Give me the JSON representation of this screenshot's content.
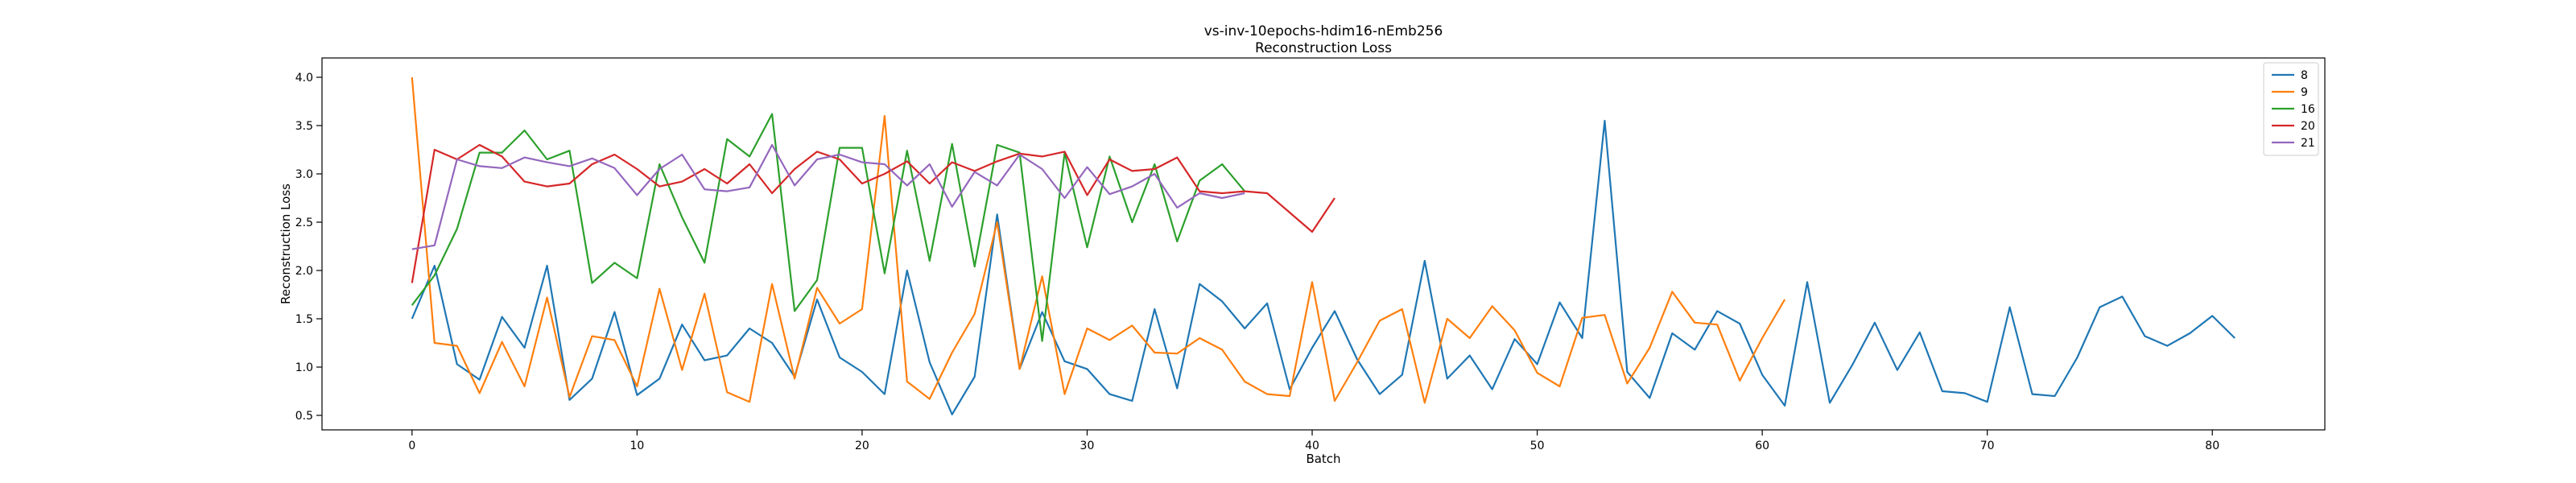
{
  "chart_data": {
    "type": "line",
    "title": "vs-inv-10epochs-hdim16-nEmb256",
    "subtitle": "Reconstruction Loss",
    "xlabel": "Batch",
    "ylabel": "Reconstruction Loss",
    "xlim": [
      -4,
      85
    ],
    "ylim": [
      0.35,
      4.2
    ],
    "xticks": [
      0,
      10,
      20,
      30,
      40,
      50,
      60,
      70,
      80
    ],
    "yticks": [
      0.5,
      1.0,
      1.5,
      2.0,
      2.5,
      3.0,
      3.5,
      4.0
    ],
    "xtick_labels": [
      "0",
      "10",
      "20",
      "30",
      "40",
      "50",
      "60",
      "70",
      "80"
    ],
    "ytick_labels": [
      "0.5",
      "1.0",
      "1.5",
      "2.0",
      "2.5",
      "3.0",
      "3.5",
      "4.0"
    ],
    "grid": false,
    "legend_position": "top-right",
    "series": [
      {
        "name": "8",
        "color": "#1f77b4",
        "values": [
          1.5,
          2.05,
          1.03,
          0.87,
          1.52,
          1.2,
          2.05,
          0.66,
          0.88,
          1.57,
          0.71,
          0.88,
          1.44,
          1.07,
          1.12,
          1.4,
          1.25,
          0.9,
          1.7,
          1.1,
          0.95,
          0.72,
          2.0,
          1.05,
          0.51,
          0.9,
          2.58,
          0.98,
          1.57,
          1.06,
          0.98,
          0.72,
          0.65,
          1.6,
          0.78,
          1.86,
          1.68,
          1.4,
          1.66,
          0.77,
          1.2,
          1.58,
          1.08,
          0.72,
          0.92,
          2.1,
          0.88,
          1.12,
          0.77,
          1.29,
          1.03,
          1.67,
          1.3,
          3.55,
          0.95,
          0.68,
          1.35,
          1.18,
          1.58,
          1.45,
          0.92,
          0.6,
          1.88,
          0.63,
          1.02,
          1.46,
          0.97,
          1.36,
          0.75,
          0.73,
          0.64,
          1.62,
          0.72,
          0.7,
          1.1,
          1.62,
          1.73,
          1.32,
          1.22,
          1.35,
          1.53,
          1.3
        ]
      },
      {
        "name": "9",
        "color": "#ff7f0e",
        "values": [
          4.0,
          1.25,
          1.22,
          0.73,
          1.26,
          0.8,
          1.72,
          0.69,
          1.32,
          1.28,
          0.8,
          1.81,
          0.97,
          1.76,
          0.74,
          0.64,
          1.86,
          0.88,
          1.82,
          1.45,
          1.6,
          3.6,
          0.85,
          0.67,
          1.15,
          1.55,
          2.5,
          0.98,
          1.94,
          0.72,
          1.4,
          1.28,
          1.43,
          1.15,
          1.14,
          1.3,
          1.18,
          0.85,
          0.72,
          0.7,
          1.88,
          0.65,
          1.05,
          1.48,
          1.6,
          0.63,
          1.5,
          1.3,
          1.63,
          1.38,
          0.94,
          0.8,
          1.51,
          1.54,
          0.83,
          1.2,
          1.78,
          1.46,
          1.44,
          0.86,
          1.3,
          1.7
        ]
      },
      {
        "name": "16",
        "color": "#2ca02c",
        "values": [
          1.64,
          1.95,
          2.43,
          3.22,
          3.22,
          3.45,
          3.15,
          3.24,
          1.87,
          2.08,
          1.92,
          3.1,
          2.55,
          2.08,
          3.36,
          3.18,
          3.62,
          1.58,
          1.9,
          3.27,
          3.27,
          1.97,
          3.24,
          2.1,
          3.31,
          2.04,
          3.3,
          3.22,
          1.27,
          3.22,
          2.24,
          3.18,
          2.5,
          3.1,
          2.3,
          2.93,
          3.1,
          2.82
        ]
      },
      {
        "name": "20",
        "color": "#d62728",
        "values": [
          1.87,
          3.25,
          3.15,
          3.3,
          3.18,
          2.92,
          2.87,
          2.9,
          3.1,
          3.2,
          3.05,
          2.87,
          2.92,
          3.05,
          2.9,
          3.1,
          2.8,
          3.05,
          3.23,
          3.15,
          2.9,
          3.0,
          3.13,
          2.9,
          3.12,
          3.03,
          3.13,
          3.21,
          3.18,
          3.23,
          2.78,
          3.15,
          3.03,
          3.05,
          3.17,
          2.82,
          2.8,
          2.82,
          2.8,
          2.6,
          2.4,
          2.75
        ]
      },
      {
        "name": "21",
        "color": "#9467bd",
        "values": [
          2.22,
          2.26,
          3.15,
          3.08,
          3.06,
          3.17,
          3.12,
          3.08,
          3.16,
          3.06,
          2.78,
          3.05,
          3.2,
          2.84,
          2.82,
          2.86,
          3.3,
          2.88,
          3.15,
          3.2,
          3.12,
          3.1,
          2.88,
          3.1,
          2.66,
          3.02,
          2.88,
          3.2,
          3.05,
          2.75,
          3.07,
          2.79,
          2.87,
          3.0,
          2.65,
          2.8,
          2.75,
          2.8
        ]
      }
    ]
  }
}
